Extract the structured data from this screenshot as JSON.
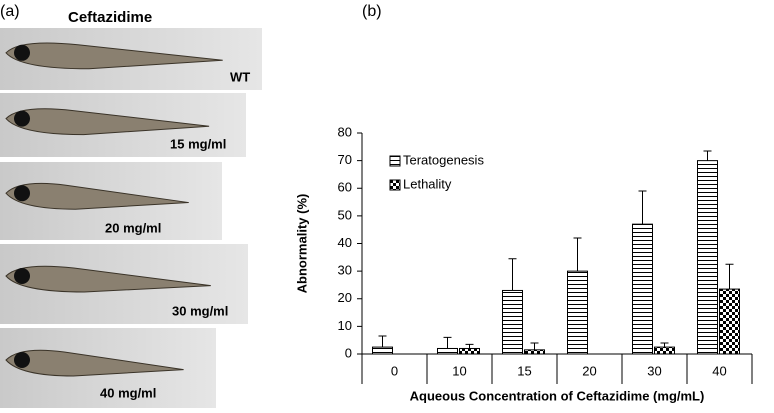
{
  "panel_a": {
    "label": "(a)",
    "title": "Ceftazidime",
    "images": [
      {
        "label": "WT"
      },
      {
        "label": "15 mg/ml"
      },
      {
        "label": "20 mg/ml"
      },
      {
        "label": "30 mg/ml"
      },
      {
        "label": "40 mg/ml"
      }
    ]
  },
  "panel_b": {
    "label": "(b)"
  },
  "chart_data": {
    "type": "bar",
    "x_label": "Aqueous Concentration of Ceftazidime (mg/mL)",
    "y_label": "Abnormality (%)",
    "categories": [
      "0",
      "10",
      "15",
      "20",
      "30",
      "40"
    ],
    "series": [
      {
        "name": "Teratogenesis",
        "color": "#000000",
        "values": [
          2.5,
          2,
          23,
          30,
          47,
          70
        ],
        "errors": [
          4,
          4,
          11.5,
          12,
          12,
          3.5
        ]
      },
      {
        "name": "Lethality",
        "color": "#000000",
        "values": [
          0,
          2,
          1.5,
          0,
          2.5,
          23.5
        ],
        "errors": [
          0,
          1.5,
          2.5,
          0,
          1.5,
          9
        ]
      }
    ],
    "ylim": [
      0,
      80
    ],
    "yticks": [
      0,
      10,
      20,
      30,
      40,
      50,
      60,
      70,
      80
    ]
  }
}
